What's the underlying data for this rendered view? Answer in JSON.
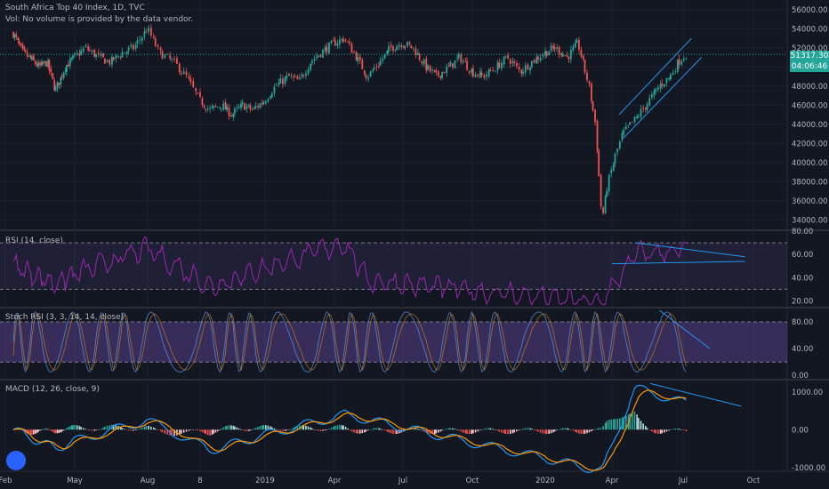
{
  "header": {
    "title": "South Africa Top 40 Index, 1D, TVC",
    "volume_note": "Vol: No volume is provided by the data vendor."
  },
  "price": {
    "last": "51317.30",
    "countdown": "04:06:46",
    "tag_color": "#26a69a"
  },
  "colors": {
    "background": "#131722",
    "grid": "#1e2230",
    "up": "#26a69a",
    "down": "#ef5350",
    "trendline": "#2196f3",
    "band": "#7e57c2",
    "macd": "#2196f3",
    "signal": "#ff9800"
  },
  "panes": {
    "rsi": {
      "label": "RSI (14, close)",
      "ticks": [
        "80.00",
        "60.00",
        "40.00",
        "20.00"
      ],
      "levels": [
        70,
        30
      ]
    },
    "stoch": {
      "label": "Stoch RSI (3, 3, 14, 14, close)",
      "ticks": [
        "80.00",
        "40.00",
        "0.00"
      ],
      "levels": [
        80,
        20
      ]
    },
    "macd": {
      "label": "MACD (12, 26, close, 9)",
      "ticks": [
        "1000.00",
        "0.00",
        "-1000.00"
      ]
    }
  },
  "chart_data": [
    {
      "type": "candlestick",
      "title": "South Africa Top 40 Index, 1D, TVC",
      "x_ticks": [
        "Feb",
        "May",
        "Aug",
        "8",
        "2019",
        "Apr",
        "Jul",
        "Oct",
        "2020",
        "Apr",
        "Jul",
        "Oct"
      ],
      "y_ticks": [
        "56000.00",
        "54000.00",
        "52000.00",
        "50000.00",
        "48000.00",
        "46000.00",
        "44000.00",
        "42000.00",
        "40000.00",
        "38000.00",
        "36000.00",
        "34000.00"
      ],
      "ylim": [
        33000,
        57000
      ],
      "last_price": 51317.3,
      "approx_closes_biweekly": [
        {
          "x": "2018-01-15",
          "y": 53500
        },
        {
          "x": "2018-02-01",
          "y": 51500
        },
        {
          "x": "2018-02-15",
          "y": 50800
        },
        {
          "x": "2018-03-01",
          "y": 50000
        },
        {
          "x": "2018-03-15",
          "y": 50500
        },
        {
          "x": "2018-03-29",
          "y": 47500
        },
        {
          "x": "2018-04-15",
          "y": 50000
        },
        {
          "x": "2018-05-01",
          "y": 51000
        },
        {
          "x": "2018-05-15",
          "y": 52000
        },
        {
          "x": "2018-06-01",
          "y": 51000
        },
        {
          "x": "2018-06-15",
          "y": 50500
        },
        {
          "x": "2018-07-01",
          "y": 51500
        },
        {
          "x": "2018-07-15",
          "y": 52000
        },
        {
          "x": "2018-08-01",
          "y": 54000
        },
        {
          "x": "2018-08-15",
          "y": 51500
        },
        {
          "x": "2018-09-01",
          "y": 50500
        },
        {
          "x": "2018-09-15",
          "y": 49000
        },
        {
          "x": "2018-10-01",
          "y": 46500
        },
        {
          "x": "2018-10-15",
          "y": 45500
        },
        {
          "x": "2018-11-01",
          "y": 46000
        },
        {
          "x": "2018-11-15",
          "y": 45000
        },
        {
          "x": "2018-12-01",
          "y": 46000
        },
        {
          "x": "2018-12-15",
          "y": 45500
        },
        {
          "x": "2019-01-01",
          "y": 46500
        },
        {
          "x": "2019-01-15",
          "y": 48000
        },
        {
          "x": "2019-02-01",
          "y": 49000
        },
        {
          "x": "2019-02-15",
          "y": 48500
        },
        {
          "x": "2019-03-01",
          "y": 50500
        },
        {
          "x": "2019-03-15",
          "y": 51500
        },
        {
          "x": "2019-04-01",
          "y": 52500
        },
        {
          "x": "2019-04-15",
          "y": 53000
        },
        {
          "x": "2019-05-01",
          "y": 51000
        },
        {
          "x": "2019-05-15",
          "y": 49000
        },
        {
          "x": "2019-06-01",
          "y": 50500
        },
        {
          "x": "2019-06-15",
          "y": 52000
        },
        {
          "x": "2019-07-01",
          "y": 52500
        },
        {
          "x": "2019-07-15",
          "y": 52000
        },
        {
          "x": "2019-08-01",
          "y": 50000
        },
        {
          "x": "2019-08-15",
          "y": 49000
        },
        {
          "x": "2019-09-01",
          "y": 50000
        },
        {
          "x": "2019-09-15",
          "y": 51000
        },
        {
          "x": "2019-10-01",
          "y": 49500
        },
        {
          "x": "2019-10-15",
          "y": 49000
        },
        {
          "x": "2019-11-01",
          "y": 50000
        },
        {
          "x": "2019-11-15",
          "y": 51000
        },
        {
          "x": "2019-12-01",
          "y": 49500
        },
        {
          "x": "2019-12-15",
          "y": 50500
        },
        {
          "x": "2020-01-01",
          "y": 51500
        },
        {
          "x": "2020-01-15",
          "y": 52000
        },
        {
          "x": "2020-02-01",
          "y": 51000
        },
        {
          "x": "2020-02-15",
          "y": 52500
        },
        {
          "x": "2020-03-01",
          "y": 48000
        },
        {
          "x": "2020-03-10",
          "y": 44000
        },
        {
          "x": "2020-03-19",
          "y": 34000
        },
        {
          "x": "2020-03-26",
          "y": 37500
        },
        {
          "x": "2020-04-05",
          "y": 40500
        },
        {
          "x": "2020-04-15",
          "y": 43000
        },
        {
          "x": "2020-05-01",
          "y": 44500
        },
        {
          "x": "2020-05-15",
          "y": 46000
        },
        {
          "x": "2020-06-01",
          "y": 48000
        },
        {
          "x": "2020-06-15",
          "y": 49000
        },
        {
          "x": "2020-06-25",
          "y": 50500
        },
        {
          "x": "2020-07-05",
          "y": 51317
        }
      ]
    },
    {
      "type": "line",
      "title": "RSI (14, close)",
      "ylim": [
        15,
        80
      ],
      "y_ticks": [
        "80.00",
        "60.00",
        "40.00",
        "20.00"
      ],
      "levels": [
        70,
        30
      ],
      "approx_values": [
        {
          "x": "2018-03-29",
          "y": 35
        },
        {
          "x": "2018-08-01",
          "y": 65
        },
        {
          "x": "2018-10-15",
          "y": 32
        },
        {
          "x": "2019-04-15",
          "y": 70
        },
        {
          "x": "2019-05-15",
          "y": 38
        },
        {
          "x": "2020-03-19",
          "y": 18
        },
        {
          "x": "2020-05-01",
          "y": 60
        },
        {
          "x": "2020-07-05",
          "y": 64
        }
      ]
    },
    {
      "type": "line",
      "title": "Stoch RSI (3, 3, 14, 14, close)",
      "ylim": [
        0,
        100
      ],
      "y_ticks": [
        "80.00",
        "40.00",
        "0.00"
      ],
      "levels": [
        80,
        20
      ]
    },
    {
      "type": "line",
      "title": "MACD (12, 26, close, 9)",
      "ylim": [
        -1100,
        1300
      ],
      "y_ticks": [
        "1000.00",
        "0.00",
        "-1000.00"
      ],
      "approx_values": [
        {
          "x": "2018-03-29",
          "y": -500
        },
        {
          "x": "2018-08-01",
          "y": 250
        },
        {
          "x": "2018-10-15",
          "y": -550
        },
        {
          "x": "2019-04-15",
          "y": 400
        },
        {
          "x": "2020-03-19",
          "y": -1100
        },
        {
          "x": "2020-05-01",
          "y": 1100
        },
        {
          "x": "2020-07-05",
          "y": 700
        }
      ]
    }
  ]
}
